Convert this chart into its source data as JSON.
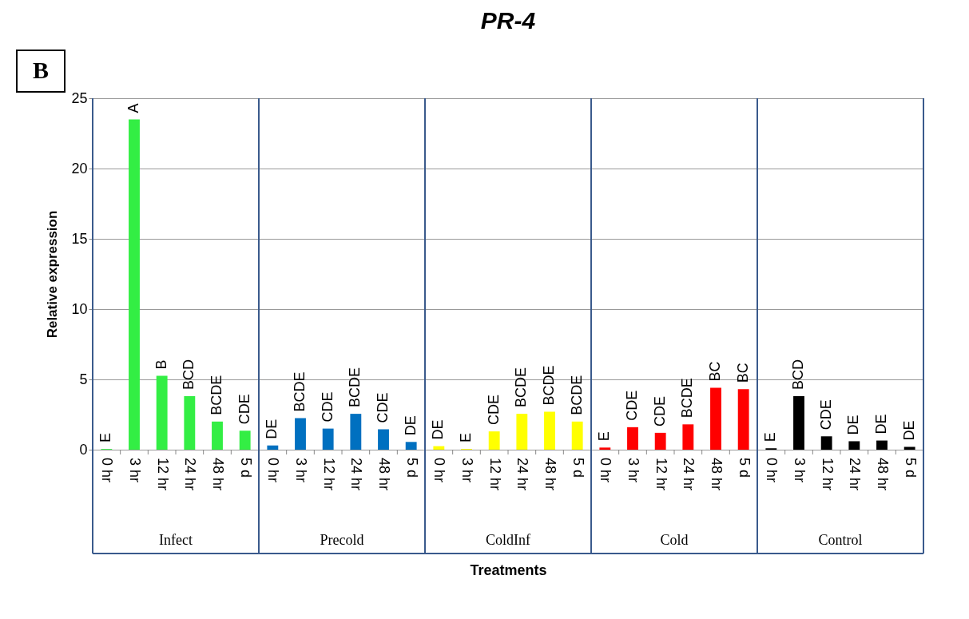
{
  "chart_data": {
    "type": "bar",
    "title": "PR-4",
    "ylabel": "Relative expression",
    "xlabel": "Treatments",
    "annotations": [
      "B",
      "Infect",
      "Precold",
      "ColdInf",
      "Cold",
      "Control"
    ],
    "categories": [
      "0 hr",
      "3 hr",
      "12 hr",
      "24 hr",
      "48 hr",
      "5 d",
      "0 hr",
      "3 hr",
      "12 hr",
      "24 hr",
      "48 hr",
      "5 d",
      "0 hr",
      "3 hr",
      "12 hr",
      "24 hr",
      "48 hr",
      "5 d",
      "0 hr",
      "3 hr",
      "12 hr",
      "24 hr",
      "48 hr",
      "5 d",
      "0 hr",
      "3 hr",
      "12 hr",
      "24 hr",
      "48 hr",
      "5 d"
    ],
    "series": [
      {
        "color": "#33ee44",
        "values": [
          0.05,
          23.5,
          5.25,
          3.8,
          2.0,
          1.35,
          null,
          null,
          null,
          null,
          null,
          null,
          null,
          null,
          null,
          null,
          null,
          null,
          null,
          null,
          null,
          null,
          null,
          null,
          null,
          null,
          null,
          null,
          null,
          null
        ],
        "value_labels": [
          "E",
          "A",
          "B",
          "BCD",
          "BCDE",
          "CDE",
          null,
          null,
          null,
          null,
          null,
          null,
          null,
          null,
          null,
          null,
          null,
          null,
          null,
          null,
          null,
          null,
          null,
          null,
          null,
          null,
          null,
          null,
          null,
          null
        ]
      },
      {
        "color": "#0070c0",
        "values": [
          null,
          null,
          null,
          null,
          null,
          null,
          0.3,
          2.25,
          1.5,
          2.55,
          1.45,
          0.55,
          null,
          null,
          null,
          null,
          null,
          null,
          null,
          null,
          null,
          null,
          null,
          null,
          null,
          null,
          null,
          null,
          null,
          null
        ],
        "value_labels": [
          null,
          null,
          null,
          null,
          null,
          null,
          "DE",
          "BCDE",
          "CDE",
          "BCDE",
          "CDE",
          "DE",
          null,
          null,
          null,
          null,
          null,
          null,
          null,
          null,
          null,
          null,
          null,
          null,
          null,
          null,
          null,
          null,
          null,
          null
        ]
      },
      {
        "color": "#ffff00",
        "values": [
          null,
          null,
          null,
          null,
          null,
          null,
          null,
          null,
          null,
          null,
          null,
          null,
          0.25,
          0.05,
          1.3,
          2.55,
          2.7,
          2.0,
          null,
          null,
          null,
          null,
          null,
          null,
          null,
          null,
          null,
          null,
          null,
          null
        ],
        "value_labels": [
          null,
          null,
          null,
          null,
          null,
          null,
          null,
          null,
          null,
          null,
          null,
          null,
          "DE",
          "E",
          "CDE",
          "BCDE",
          "BCDE",
          "BCDE",
          null,
          null,
          null,
          null,
          null,
          null,
          null,
          null,
          null,
          null,
          null,
          null
        ]
      },
      {
        "color": "#ff0000",
        "values": [
          null,
          null,
          null,
          null,
          null,
          null,
          null,
          null,
          null,
          null,
          null,
          null,
          null,
          null,
          null,
          null,
          null,
          null,
          0.15,
          1.6,
          1.2,
          1.8,
          4.4,
          4.3,
          null,
          null,
          null,
          null,
          null,
          null
        ],
        "value_labels": [
          null,
          null,
          null,
          null,
          null,
          null,
          null,
          null,
          null,
          null,
          null,
          null,
          null,
          null,
          null,
          null,
          null,
          null,
          "E",
          "CDE",
          "CDE",
          "BCDE",
          "BC",
          "BC",
          null,
          null,
          null,
          null,
          null,
          null
        ]
      },
      {
        "color": "#000000",
        "values": [
          null,
          null,
          null,
          null,
          null,
          null,
          null,
          null,
          null,
          null,
          null,
          null,
          null,
          null,
          null,
          null,
          null,
          null,
          null,
          null,
          null,
          null,
          null,
          null,
          0.1,
          3.8,
          0.95,
          0.6,
          0.65,
          0.2
        ],
        "value_labels": [
          null,
          null,
          null,
          null,
          null,
          null,
          null,
          null,
          null,
          null,
          null,
          null,
          null,
          null,
          null,
          null,
          null,
          null,
          null,
          null,
          null,
          null,
          null,
          null,
          "E",
          "BCD",
          "CDE",
          "DE",
          "DE",
          "DE"
        ]
      }
    ],
    "ylim": [
      0,
      25
    ],
    "yticks": [
      0,
      5,
      10,
      15,
      20,
      25
    ],
    "grid": "y",
    "legend": false
  }
}
